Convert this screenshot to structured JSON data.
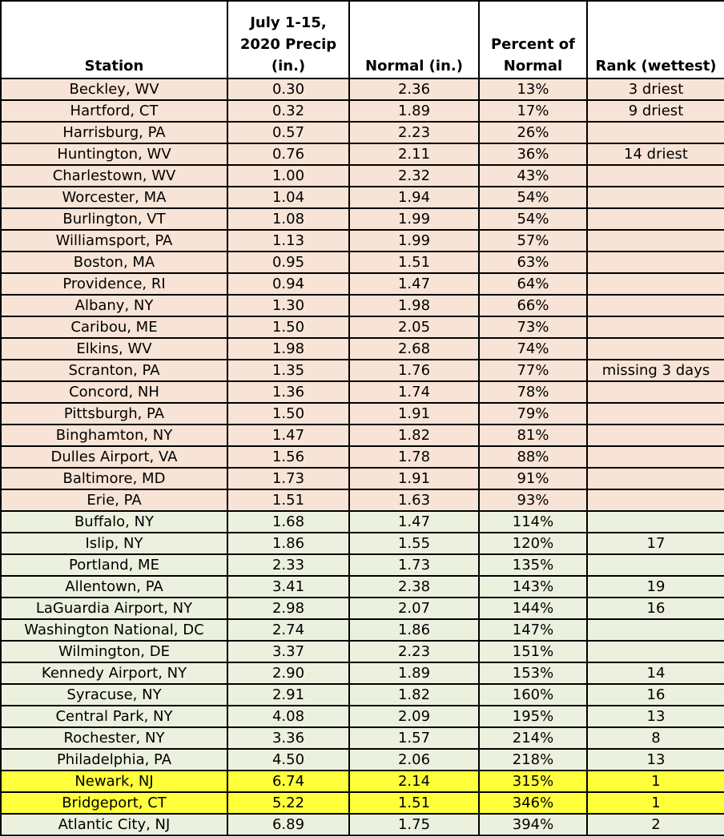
{
  "columns": [
    "Station",
    "July 1-15, 2020 Precip (in.)",
    "Normal (in.)",
    "Percent of Normal",
    "Rank (wettest)"
  ],
  "colors": {
    "below_normal": "#f8e4d6",
    "above_normal": "#ebf1de",
    "record": "#ffff3c"
  },
  "rows": [
    {
      "station": "Beckley, WV",
      "precip": "0.30",
      "normal": "2.36",
      "percent": "13%",
      "rank": "3 driest",
      "category": "dry"
    },
    {
      "station": "Hartford, CT",
      "precip": "0.32",
      "normal": "1.89",
      "percent": "17%",
      "rank": "9 driest",
      "category": "dry"
    },
    {
      "station": "Harrisburg, PA",
      "precip": "0.57",
      "normal": "2.23",
      "percent": "26%",
      "rank": "",
      "category": "dry"
    },
    {
      "station": "Huntington, WV",
      "precip": "0.76",
      "normal": "2.11",
      "percent": "36%",
      "rank": "14 driest",
      "category": "dry"
    },
    {
      "station": "Charlestown, WV",
      "precip": "1.00",
      "normal": "2.32",
      "percent": "43%",
      "rank": "",
      "category": "dry"
    },
    {
      "station": "Worcester, MA",
      "precip": "1.04",
      "normal": "1.94",
      "percent": "54%",
      "rank": "",
      "category": "dry"
    },
    {
      "station": "Burlington, VT",
      "precip": "1.08",
      "normal": "1.99",
      "percent": "54%",
      "rank": "",
      "category": "dry"
    },
    {
      "station": "Williamsport, PA",
      "precip": "1.13",
      "normal": "1.99",
      "percent": "57%",
      "rank": "",
      "category": "dry"
    },
    {
      "station": "Boston, MA",
      "precip": "0.95",
      "normal": "1.51",
      "percent": "63%",
      "rank": "",
      "category": "dry"
    },
    {
      "station": "Providence, RI",
      "precip": "0.94",
      "normal": "1.47",
      "percent": "64%",
      "rank": "",
      "category": "dry"
    },
    {
      "station": "Albany, NY",
      "precip": "1.30",
      "normal": "1.98",
      "percent": "66%",
      "rank": "",
      "category": "dry"
    },
    {
      "station": "Caribou, ME",
      "precip": "1.50",
      "normal": "2.05",
      "percent": "73%",
      "rank": "",
      "category": "dry"
    },
    {
      "station": "Elkins, WV",
      "precip": "1.98",
      "normal": "2.68",
      "percent": "74%",
      "rank": "",
      "category": "dry"
    },
    {
      "station": "Scranton, PA",
      "precip": "1.35",
      "normal": "1.76",
      "percent": "77%",
      "rank": "missing 3 days",
      "category": "dry"
    },
    {
      "station": "Concord, NH",
      "precip": "1.36",
      "normal": "1.74",
      "percent": "78%",
      "rank": "",
      "category": "dry"
    },
    {
      "station": "Pittsburgh, PA",
      "precip": "1.50",
      "normal": "1.91",
      "percent": "79%",
      "rank": "",
      "category": "dry"
    },
    {
      "station": "Binghamton, NY",
      "precip": "1.47",
      "normal": "1.82",
      "percent": "81%",
      "rank": "",
      "category": "dry"
    },
    {
      "station": "Dulles Airport, VA",
      "precip": "1.56",
      "normal": "1.78",
      "percent": "88%",
      "rank": "",
      "category": "dry"
    },
    {
      "station": "Baltimore, MD",
      "precip": "1.73",
      "normal": "1.91",
      "percent": "91%",
      "rank": "",
      "category": "dry"
    },
    {
      "station": "Erie, PA",
      "precip": "1.51",
      "normal": "1.63",
      "percent": "93%",
      "rank": "",
      "category": "dry"
    },
    {
      "station": "Buffalo, NY",
      "precip": "1.68",
      "normal": "1.47",
      "percent": "114%",
      "rank": "",
      "category": "wet"
    },
    {
      "station": "Islip, NY",
      "precip": "1.86",
      "normal": "1.55",
      "percent": "120%",
      "rank": "17",
      "category": "wet"
    },
    {
      "station": "Portland, ME",
      "precip": "2.33",
      "normal": "1.73",
      "percent": "135%",
      "rank": "",
      "category": "wet"
    },
    {
      "station": "Allentown, PA",
      "precip": "3.41",
      "normal": "2.38",
      "percent": "143%",
      "rank": "19",
      "category": "wet"
    },
    {
      "station": "LaGuardia Airport, NY",
      "precip": "2.98",
      "normal": "2.07",
      "percent": "144%",
      "rank": "16",
      "category": "wet"
    },
    {
      "station": "Washington National, DC",
      "precip": "2.74",
      "normal": "1.86",
      "percent": "147%",
      "rank": "",
      "category": "wet"
    },
    {
      "station": "Wilmington, DE",
      "precip": "3.37",
      "normal": "2.23",
      "percent": "151%",
      "rank": "",
      "category": "wet"
    },
    {
      "station": "Kennedy Airport, NY",
      "precip": "2.90",
      "normal": "1.89",
      "percent": "153%",
      "rank": "14",
      "category": "wet"
    },
    {
      "station": "Syracuse, NY",
      "precip": "2.91",
      "normal": "1.82",
      "percent": "160%",
      "rank": "16",
      "category": "wet"
    },
    {
      "station": "Central Park, NY",
      "precip": "4.08",
      "normal": "2.09",
      "percent": "195%",
      "rank": "13",
      "category": "wet"
    },
    {
      "station": "Rochester, NY",
      "precip": "3.36",
      "normal": "1.57",
      "percent": "214%",
      "rank": "8",
      "category": "wet"
    },
    {
      "station": "Philadelphia, PA",
      "precip": "4.50",
      "normal": "2.06",
      "percent": "218%",
      "rank": "13",
      "category": "wet"
    },
    {
      "station": "Newark, NJ",
      "precip": "6.74",
      "normal": "2.14",
      "percent": "315%",
      "rank": "1",
      "category": "record"
    },
    {
      "station": "Bridgeport, CT",
      "precip": "5.22",
      "normal": "1.51",
      "percent": "346%",
      "rank": "1",
      "category": "record"
    },
    {
      "station": "Atlantic City, NJ",
      "precip": "6.89",
      "normal": "1.75",
      "percent": "394%",
      "rank": "2",
      "category": "wet"
    }
  ]
}
